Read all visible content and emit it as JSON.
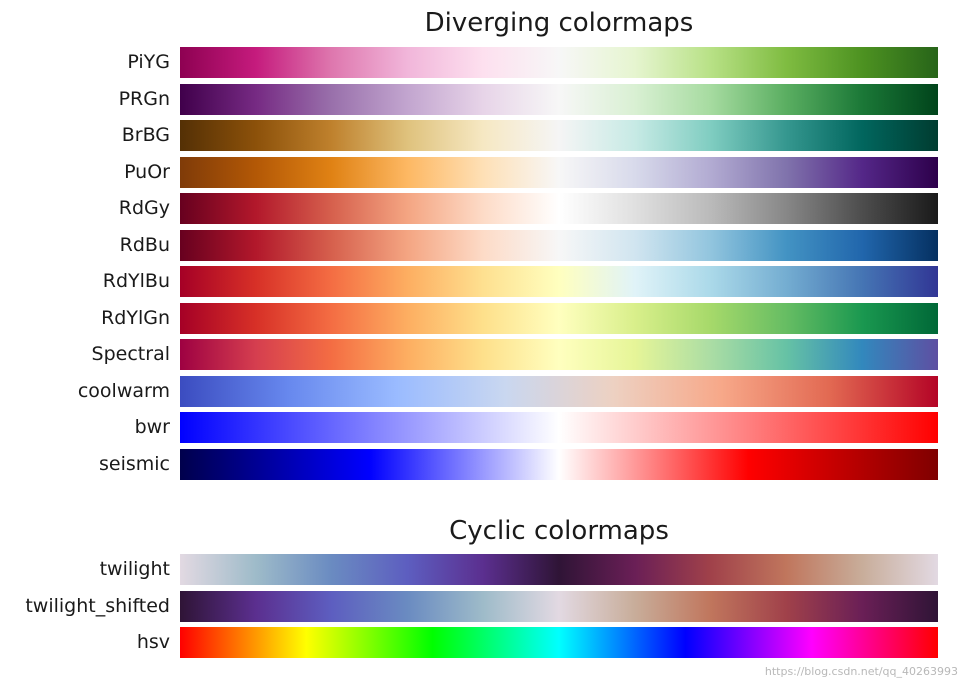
{
  "chart_data": [
    {
      "type": "colormap-swatches",
      "title": "Diverging colormaps",
      "colormaps": [
        {
          "name": "PiYG",
          "stops": [
            "#8e0152",
            "#c51b7d",
            "#de77ae",
            "#f1b6da",
            "#fde0ef",
            "#f7f7f7",
            "#e6f5d0",
            "#b8e186",
            "#7fbc41",
            "#4d9221",
            "#276419"
          ]
        },
        {
          "name": "PRGn",
          "stops": [
            "#40004b",
            "#762a83",
            "#9970ab",
            "#c2a5cf",
            "#e7d4e8",
            "#f7f7f7",
            "#d9f0d3",
            "#a6dba0",
            "#5aae61",
            "#1b7837",
            "#00441b"
          ]
        },
        {
          "name": "BrBG",
          "stops": [
            "#543005",
            "#8c510a",
            "#bf812d",
            "#dfc27d",
            "#f6e8c3",
            "#f5f5f5",
            "#c7eae5",
            "#80cdc1",
            "#35978f",
            "#01665e",
            "#003c30"
          ]
        },
        {
          "name": "PuOr",
          "stops": [
            "#7f3b08",
            "#b35806",
            "#e08214",
            "#fdb863",
            "#fee0b6",
            "#f7f7f7",
            "#d8daeb",
            "#b2abd2",
            "#8073ac",
            "#542788",
            "#2d004b"
          ]
        },
        {
          "name": "RdGy",
          "stops": [
            "#67001f",
            "#b2182b",
            "#d6604d",
            "#f4a582",
            "#fddbc7",
            "#ffffff",
            "#e0e0e0",
            "#bababa",
            "#878787",
            "#4d4d4d",
            "#1a1a1a"
          ]
        },
        {
          "name": "RdBu",
          "stops": [
            "#67001f",
            "#b2182b",
            "#d6604d",
            "#f4a582",
            "#fddbc7",
            "#f7f7f7",
            "#d1e5f0",
            "#92c5de",
            "#4393c3",
            "#2166ac",
            "#053061"
          ]
        },
        {
          "name": "RdYlBu",
          "stops": [
            "#a50026",
            "#d73027",
            "#f46d43",
            "#fdae61",
            "#fee090",
            "#ffffbf",
            "#e0f3f8",
            "#abd9e9",
            "#74add1",
            "#4575b4",
            "#313695"
          ]
        },
        {
          "name": "RdYlGn",
          "stops": [
            "#a50026",
            "#d73027",
            "#f46d43",
            "#fdae61",
            "#fee08b",
            "#ffffbf",
            "#d9ef8b",
            "#a6d96a",
            "#66bd63",
            "#1a9850",
            "#006837"
          ]
        },
        {
          "name": "Spectral",
          "stops": [
            "#9e0142",
            "#d53e4f",
            "#f46d43",
            "#fdae61",
            "#fee08b",
            "#ffffbf",
            "#e6f598",
            "#abdda4",
            "#66c2a5",
            "#3288bd",
            "#5e4fa2"
          ]
        },
        {
          "name": "coolwarm",
          "stops": [
            "#3b4cc0",
            "#6788ee",
            "#9abbff",
            "#c9d7f0",
            "#edd1c2",
            "#f7a889",
            "#e26952",
            "#b40426"
          ]
        },
        {
          "name": "bwr",
          "stops": [
            "#0000ff",
            "#ffffff",
            "#ff0000"
          ]
        },
        {
          "name": "seismic",
          "stops": [
            "#00004c",
            "#0000ff",
            "#ffffff",
            "#ff0000",
            "#7f0000"
          ]
        }
      ]
    },
    {
      "type": "colormap-swatches",
      "title": "Cyclic colormaps",
      "colormaps": [
        {
          "name": "twilight",
          "stops": [
            "#e2d9e2",
            "#9ebbc9",
            "#6a8bc1",
            "#5d5ec0",
            "#5b2f8f",
            "#2f1436",
            "#6a1f56",
            "#a0414a",
            "#c0765d",
            "#c8ad9a",
            "#e2d9e2"
          ]
        },
        {
          "name": "twilight_shifted",
          "stops": [
            "#2f1436",
            "#5b2f8f",
            "#5d5ec0",
            "#6a8bc1",
            "#9ebbc9",
            "#e2d9e2",
            "#c8ad9a",
            "#c0765d",
            "#a0414a",
            "#6a1f56",
            "#2f1436"
          ]
        },
        {
          "name": "hsv",
          "stops": [
            "#ff0000",
            "#ffff00",
            "#00ff00",
            "#00ffff",
            "#0000ff",
            "#ff00ff",
            "#ff0000"
          ]
        }
      ]
    }
  ],
  "watermark": "https://blog.csdn.net/qq_40263993"
}
